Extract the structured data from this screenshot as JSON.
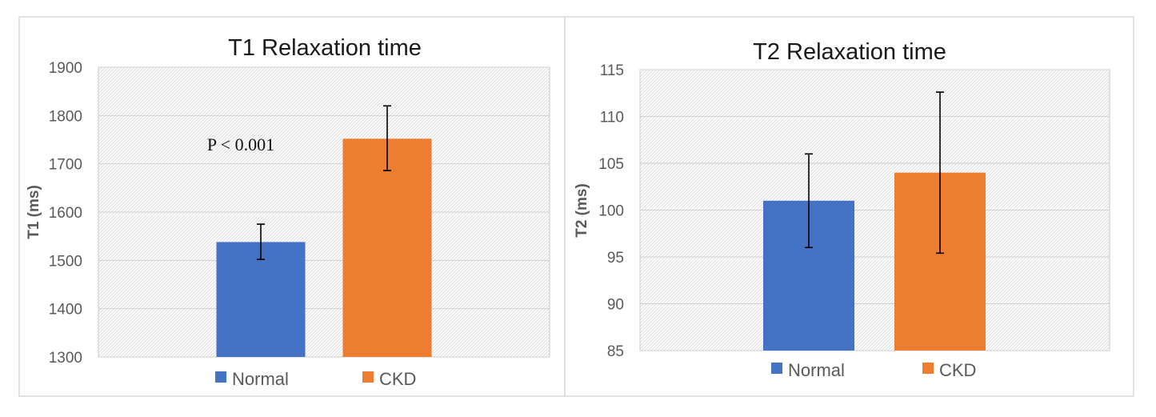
{
  "chart_data": [
    {
      "type": "bar",
      "title": "T1 Relaxation time",
      "xlabel": "",
      "ylabel": "T1 (ms)",
      "ylim": [
        1300,
        1900
      ],
      "yticks": [
        1300,
        1400,
        1500,
        1600,
        1700,
        1800,
        1900
      ],
      "categories": [
        "Normal",
        "CKD"
      ],
      "values": [
        1538,
        1752
      ],
      "error_low": [
        1502,
        1686
      ],
      "error_high": [
        1575,
        1820
      ],
      "colors": [
        "#4472C4",
        "#ED7D31"
      ],
      "annotation": "P < 0.001",
      "legend": [
        "Normal",
        "CKD"
      ],
      "legend_position": "bottom",
      "grid": true
    },
    {
      "type": "bar",
      "title": "T2 Relaxation time",
      "xlabel": "",
      "ylabel": "T2 (ms)",
      "ylim": [
        85,
        115
      ],
      "yticks": [
        85,
        90,
        95,
        100,
        105,
        110,
        115
      ],
      "categories": [
        "Normal",
        "CKD"
      ],
      "values": [
        101,
        104
      ],
      "error_low": [
        96,
        95.4
      ],
      "error_high": [
        106,
        112.6
      ],
      "colors": [
        "#4472C4",
        "#ED7D31"
      ],
      "legend": [
        "Normal",
        "CKD"
      ],
      "legend_position": "bottom",
      "grid": true
    }
  ]
}
